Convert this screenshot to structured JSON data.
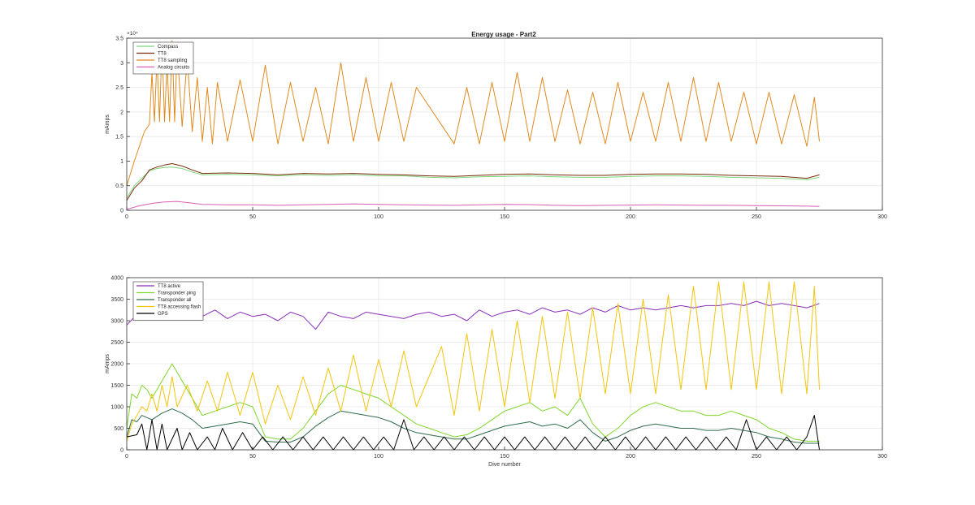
{
  "figure": {
    "title": "Energy usage - Part2"
  },
  "chart_data": [
    {
      "type": "line",
      "title": "Energy usage - Part2",
      "xlabel": "",
      "ylabel": "mAmps",
      "xlim": [
        0,
        300
      ],
      "ylim": [
        0,
        35000
      ],
      "xticks": [
        0,
        50,
        100,
        150,
        200,
        250,
        300
      ],
      "yticks": [
        0,
        5000,
        10000,
        15000,
        20000,
        25000,
        30000,
        35000
      ],
      "ytick_labels": [
        "0",
        "0.5",
        "1",
        "1.5",
        "2",
        "2.5",
        "3",
        "3.5"
      ],
      "yexponent_label": "×10⁴",
      "grid": true,
      "legend_position": "top-left",
      "series": [
        {
          "name": "Compass",
          "color": "#7fd67f",
          "x": [
            0,
            3,
            6,
            9,
            12,
            15,
            18,
            22,
            26,
            30,
            40,
            50,
            60,
            70,
            80,
            90,
            100,
            110,
            120,
            130,
            140,
            150,
            160,
            170,
            180,
            190,
            200,
            210,
            220,
            230,
            240,
            250,
            260,
            270,
            275
          ],
          "values": [
            2500,
            5000,
            6500,
            8000,
            8500,
            8700,
            8800,
            8500,
            7800,
            7200,
            7300,
            7200,
            7000,
            7200,
            7100,
            7200,
            7000,
            7000,
            6700,
            6600,
            6800,
            6900,
            7000,
            6800,
            6700,
            6700,
            6900,
            7000,
            7000,
            6900,
            6700,
            6600,
            6500,
            6200,
            6700
          ]
        },
        {
          "name": "TT8",
          "color": "#7a2a0a",
          "x": [
            0,
            3,
            6,
            9,
            12,
            15,
            18,
            22,
            26,
            30,
            40,
            50,
            60,
            70,
            80,
            90,
            100,
            110,
            120,
            130,
            140,
            150,
            160,
            170,
            180,
            190,
            200,
            210,
            220,
            230,
            240,
            250,
            260,
            270,
            275
          ],
          "values": [
            2000,
            4500,
            6000,
            8200,
            8800,
            9200,
            9500,
            9000,
            8200,
            7500,
            7600,
            7500,
            7200,
            7500,
            7400,
            7500,
            7300,
            7200,
            7000,
            6900,
            7100,
            7300,
            7400,
            7200,
            7100,
            7100,
            7300,
            7400,
            7400,
            7300,
            7100,
            7000,
            6900,
            6500,
            7200
          ]
        },
        {
          "name": "TT8 sampling",
          "color": "#e08a1e",
          "x": [
            0,
            3,
            5,
            7,
            9,
            10,
            11,
            12,
            13,
            14,
            15,
            16,
            17,
            18,
            19,
            20,
            22,
            24,
            26,
            28,
            30,
            32,
            34,
            36,
            40,
            45,
            50,
            55,
            60,
            65,
            70,
            75,
            80,
            85,
            90,
            95,
            100,
            105,
            110,
            115,
            130,
            135,
            140,
            145,
            150,
            155,
            160,
            165,
            170,
            175,
            180,
            185,
            190,
            195,
            200,
            205,
            210,
            215,
            220,
            225,
            230,
            235,
            240,
            245,
            250,
            255,
            260,
            265,
            270,
            273,
            275
          ],
          "values": [
            5000,
            10000,
            13000,
            16000,
            17500,
            28000,
            18000,
            31000,
            18000,
            34000,
            18000,
            30000,
            18000,
            34500,
            18000,
            33000,
            17000,
            31000,
            16000,
            27000,
            14000,
            25000,
            13500,
            26000,
            14000,
            26500,
            14000,
            29500,
            13500,
            26000,
            14000,
            25000,
            13500,
            30000,
            14000,
            27000,
            14000,
            26000,
            14000,
            25000,
            13500,
            25000,
            13500,
            26000,
            14000,
            28000,
            14000,
            27000,
            14000,
            24500,
            13500,
            24000,
            13500,
            26000,
            14000,
            24000,
            14000,
            26000,
            14000,
            27000,
            14000,
            26000,
            14000,
            24000,
            13500,
            24000,
            13500,
            23500,
            13000,
            23000,
            14000
          ]
        },
        {
          "name": "Analog circuits",
          "color": "#d65fb3",
          "x": [
            0,
            5,
            10,
            15,
            20,
            25,
            30,
            40,
            50,
            60,
            70,
            80,
            90,
            100,
            110,
            120,
            130,
            140,
            150,
            160,
            170,
            180,
            190,
            200,
            210,
            220,
            230,
            240,
            250,
            260,
            270,
            275
          ],
          "values": [
            200,
            900,
            1400,
            1700,
            1800,
            1500,
            1200,
            1100,
            1100,
            1000,
            1100,
            1200,
            1300,
            1200,
            1100,
            1050,
            1000,
            1100,
            1200,
            1150,
            1000,
            950,
            1000,
            1050,
            1100,
            1050,
            1000,
            1000,
            950,
            900,
            850,
            800
          ]
        }
      ]
    },
    {
      "type": "line",
      "title": "",
      "xlabel": "Dive number",
      "ylabel": "mAmps",
      "xlim": [
        0,
        300
      ],
      "ylim": [
        0,
        4000
      ],
      "xticks": [
        0,
        50,
        100,
        150,
        200,
        250,
        300
      ],
      "yticks": [
        0,
        500,
        1000,
        1500,
        2000,
        2500,
        3000,
        3500,
        4000
      ],
      "ytick_labels": [
        "0",
        "500",
        "1000",
        "1500",
        "2000",
        "2500",
        "3000",
        "3500",
        "4000"
      ],
      "grid": true,
      "legend_position": "top-left",
      "series": [
        {
          "name": "TT8 active",
          "color": "#8a2fb8",
          "x": [
            0,
            5,
            10,
            15,
            20,
            25,
            30,
            35,
            40,
            45,
            50,
            55,
            60,
            65,
            70,
            75,
            80,
            85,
            90,
            95,
            100,
            105,
            110,
            115,
            120,
            125,
            130,
            135,
            140,
            145,
            150,
            155,
            160,
            165,
            170,
            175,
            180,
            185,
            190,
            195,
            200,
            205,
            210,
            215,
            220,
            225,
            230,
            235,
            240,
            245,
            250,
            255,
            260,
            265,
            270,
            275
          ],
          "values": [
            2900,
            3200,
            3100,
            3250,
            3150,
            3200,
            3100,
            3250,
            3050,
            3200,
            3100,
            3150,
            3000,
            3200,
            3100,
            2800,
            3200,
            3100,
            3050,
            3200,
            3150,
            3100,
            3050,
            3150,
            3200,
            3100,
            3150,
            3000,
            3250,
            3100,
            3200,
            3250,
            3150,
            3300,
            3200,
            3250,
            3150,
            3300,
            3200,
            3350,
            3250,
            3300,
            3250,
            3300,
            3350,
            3300,
            3350,
            3350,
            3400,
            3350,
            3450,
            3350,
            3400,
            3350,
            3300,
            3400
          ]
        },
        {
          "name": "Transponder ping",
          "color": "#7fd62a",
          "x": [
            0,
            2,
            4,
            6,
            8,
            10,
            14,
            18,
            22,
            26,
            30,
            35,
            40,
            45,
            50,
            55,
            60,
            65,
            70,
            75,
            80,
            85,
            90,
            95,
            100,
            105,
            110,
            115,
            120,
            125,
            130,
            135,
            140,
            145,
            150,
            155,
            160,
            165,
            170,
            175,
            180,
            185,
            190,
            195,
            200,
            205,
            210,
            215,
            220,
            225,
            230,
            235,
            240,
            245,
            250,
            255,
            260,
            265,
            270,
            275
          ],
          "values": [
            500,
            1300,
            1200,
            1500,
            1400,
            1200,
            1600,
            2000,
            1600,
            1200,
            800,
            900,
            1000,
            1100,
            1000,
            300,
            250,
            250,
            500,
            900,
            1300,
            1500,
            1400,
            1300,
            1200,
            1000,
            800,
            600,
            500,
            400,
            300,
            350,
            500,
            700,
            900,
            1000,
            1100,
            900,
            1000,
            800,
            1200,
            600,
            300,
            500,
            800,
            1000,
            1100,
            1000,
            900,
            900,
            800,
            800,
            900,
            800,
            700,
            500,
            400,
            250,
            200,
            200
          ]
        },
        {
          "name": "Transponder all",
          "color": "#2f6b4a",
          "x": [
            0,
            2,
            4,
            6,
            8,
            10,
            14,
            18,
            22,
            26,
            30,
            35,
            40,
            45,
            50,
            55,
            60,
            65,
            70,
            75,
            80,
            85,
            90,
            95,
            100,
            105,
            110,
            115,
            120,
            125,
            130,
            135,
            140,
            145,
            150,
            155,
            160,
            165,
            170,
            175,
            180,
            185,
            190,
            195,
            200,
            205,
            210,
            215,
            220,
            225,
            230,
            235,
            240,
            245,
            250,
            255,
            260,
            265,
            270,
            275
          ],
          "values": [
            300,
            700,
            650,
            800,
            750,
            700,
            850,
            950,
            850,
            700,
            500,
            550,
            600,
            650,
            600,
            200,
            180,
            180,
            300,
            550,
            750,
            900,
            850,
            800,
            750,
            650,
            500,
            400,
            350,
            300,
            250,
            250,
            350,
            450,
            550,
            600,
            650,
            550,
            600,
            500,
            700,
            400,
            200,
            300,
            450,
            550,
            600,
            550,
            500,
            500,
            450,
            450,
            500,
            450,
            400,
            300,
            250,
            180,
            150,
            150
          ]
        },
        {
          "name": "TT8 accessing flash",
          "color": "#f2c40c",
          "x": [
            0,
            2,
            4,
            6,
            8,
            10,
            12,
            14,
            16,
            18,
            20,
            24,
            28,
            32,
            36,
            40,
            45,
            50,
            55,
            60,
            65,
            70,
            75,
            80,
            85,
            90,
            95,
            100,
            105,
            110,
            115,
            125,
            130,
            135,
            140,
            145,
            150,
            155,
            160,
            165,
            170,
            175,
            180,
            185,
            190,
            195,
            200,
            205,
            210,
            215,
            220,
            225,
            230,
            235,
            240,
            245,
            250,
            255,
            260,
            265,
            270,
            273,
            275
          ],
          "values": [
            200,
            600,
            800,
            1000,
            900,
            1300,
            900,
            1500,
            1000,
            1700,
            1000,
            1500,
            900,
            1600,
            900,
            1800,
            800,
            1800,
            600,
            1500,
            700,
            1700,
            800,
            1900,
            900,
            2200,
            900,
            2100,
            1000,
            2300,
            1000,
            2400,
            800,
            2700,
            900,
            2800,
            1000,
            3000,
            1100,
            3100,
            1200,
            3200,
            1200,
            3300,
            1300,
            3400,
            1300,
            3500,
            1300,
            3600,
            1400,
            3800,
            1400,
            3900,
            1400,
            3900,
            1400,
            3900,
            1300,
            3900,
            1300,
            3800,
            1400
          ]
        },
        {
          "name": "GPS",
          "color": "#000000",
          "x": [
            0,
            4,
            6,
            8,
            10,
            12,
            14,
            16,
            20,
            22,
            25,
            28,
            32,
            35,
            38,
            42,
            46,
            50,
            54,
            58,
            62,
            66,
            70,
            74,
            78,
            82,
            86,
            90,
            94,
            98,
            102,
            106,
            110,
            114,
            118,
            122,
            126,
            130,
            134,
            138,
            142,
            146,
            150,
            154,
            158,
            162,
            166,
            170,
            174,
            178,
            182,
            186,
            190,
            194,
            198,
            202,
            206,
            210,
            214,
            218,
            222,
            226,
            230,
            234,
            238,
            242,
            246,
            250,
            254,
            258,
            262,
            266,
            270,
            273,
            275
          ],
          "values": [
            300,
            350,
            600,
            0,
            700,
            0,
            600,
            0,
            500,
            0,
            400,
            0,
            300,
            0,
            500,
            0,
            400,
            0,
            300,
            0,
            300,
            0,
            300,
            0,
            300,
            0,
            300,
            0,
            300,
            0,
            300,
            0,
            700,
            0,
            300,
            0,
            300,
            0,
            300,
            0,
            300,
            0,
            300,
            0,
            300,
            0,
            300,
            0,
            300,
            0,
            300,
            0,
            300,
            0,
            300,
            0,
            300,
            0,
            300,
            0,
            300,
            0,
            300,
            0,
            300,
            0,
            700,
            0,
            300,
            0,
            300,
            0,
            300,
            800,
            0
          ]
        }
      ]
    }
  ]
}
